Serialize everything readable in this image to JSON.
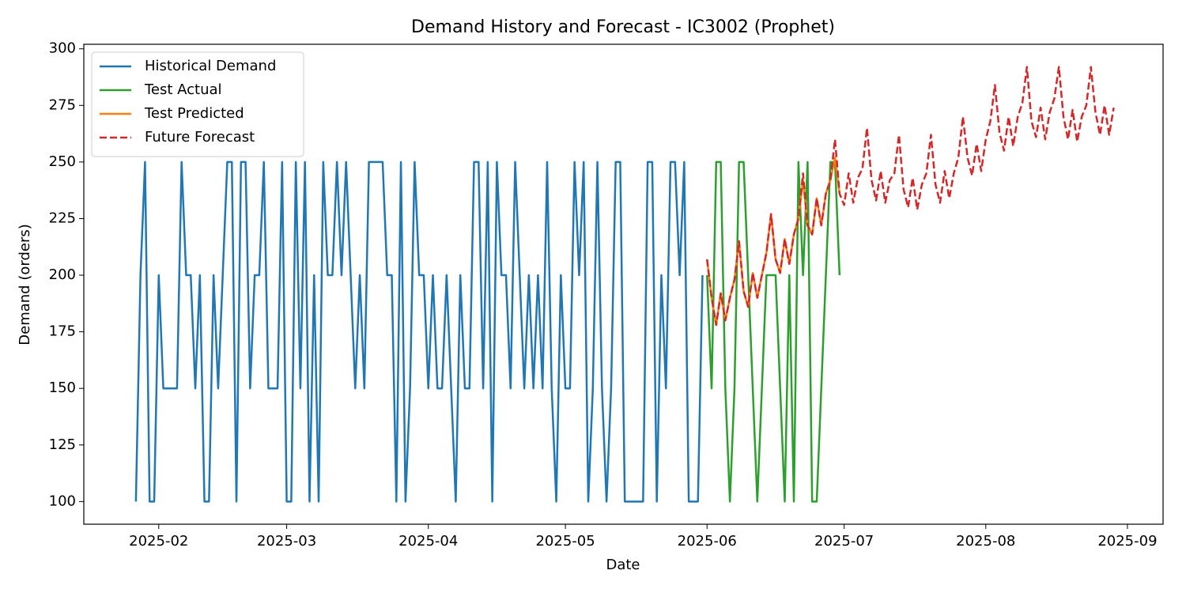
{
  "chart_data": {
    "type": "line",
    "title": "Demand History and Forecast - IC3002 (Prophet)",
    "x_label": "Date",
    "y_label": "Demand (orders)",
    "xlim": [
      15.6,
      251.8
    ],
    "ylim": [
      90,
      302
    ],
    "xticks": [
      {
        "value": 32,
        "label": "2025-02"
      },
      {
        "value": 60,
        "label": "2025-03"
      },
      {
        "value": 91,
        "label": "2025-04"
      },
      {
        "value": 121,
        "label": "2025-05"
      },
      {
        "value": 152,
        "label": "2025-06"
      },
      {
        "value": 182,
        "label": "2025-07"
      },
      {
        "value": 213,
        "label": "2025-08"
      },
      {
        "value": 244,
        "label": "2025-09"
      }
    ],
    "yticks": [
      100,
      125,
      150,
      175,
      200,
      225,
      250,
      275,
      300
    ],
    "legend": "upper left",
    "series": [
      {
        "name": "Historical Demand",
        "color": "#1f77b4",
        "linestyle": "solid",
        "x": [
          27,
          28,
          29,
          30,
          31,
          32,
          33,
          34,
          35,
          36,
          37,
          38,
          39,
          40,
          41,
          42,
          43,
          44,
          45,
          46,
          47,
          48,
          49,
          50,
          51,
          52,
          53,
          54,
          55,
          56,
          57,
          58,
          59,
          60,
          61,
          62,
          63,
          64,
          65,
          66,
          67,
          68,
          69,
          70,
          71,
          72,
          73,
          74,
          75,
          76,
          77,
          78,
          79,
          80,
          81,
          82,
          83,
          84,
          85,
          86,
          87,
          88,
          89,
          90,
          91,
          92,
          93,
          94,
          95,
          96,
          97,
          98,
          99,
          100,
          101,
          102,
          103,
          104,
          105,
          106,
          107,
          108,
          109,
          110,
          111,
          112,
          113,
          114,
          115,
          116,
          117,
          118,
          119,
          120,
          121,
          122,
          123,
          124,
          125,
          126,
          127,
          128,
          129,
          130,
          131,
          132,
          133,
          134,
          135,
          136,
          137,
          138,
          139,
          140,
          141,
          142,
          143,
          144,
          145,
          146,
          147,
          148,
          149,
          150,
          151
        ],
        "values": [
          100,
          200,
          250,
          100,
          100,
          200,
          150,
          150,
          150,
          150,
          250,
          200,
          200,
          150,
          200,
          100,
          100,
          200,
          150,
          200,
          250,
          250,
          100,
          250,
          250,
          150,
          200,
          200,
          250,
          150,
          150,
          150,
          250,
          100,
          100,
          250,
          150,
          250,
          100,
          200,
          100,
          250,
          200,
          200,
          250,
          200,
          250,
          200,
          150,
          200,
          150,
          250,
          250,
          250,
          250,
          200,
          200,
          100,
          250,
          100,
          150,
          250,
          200,
          200,
          150,
          200,
          150,
          150,
          200,
          150,
          100,
          200,
          150,
          150,
          250,
          250,
          150,
          250,
          100,
          250,
          200,
          200,
          150,
          250,
          200,
          150,
          200,
          150,
          200,
          150,
          250,
          150,
          100,
          200,
          150,
          150,
          250,
          200,
          250,
          100,
          150,
          250,
          150,
          100,
          150,
          250,
          250,
          100,
          100,
          100,
          100,
          100,
          250,
          250,
          100,
          200,
          150,
          250,
          250,
          200,
          250,
          100,
          100,
          100,
          200
        ]
      },
      {
        "name": "Test Actual",
        "color": "#2ca02c",
        "linestyle": "solid",
        "x": [
          152,
          153,
          154,
          155,
          156,
          157,
          158,
          159,
          160,
          161,
          162,
          163,
          164,
          165,
          166,
          167,
          168,
          169,
          170,
          171,
          172,
          173,
          174,
          175,
          176,
          177,
          178,
          179,
          180,
          181
        ],
        "values": [
          200,
          150,
          250,
          250,
          150,
          100,
          150,
          250,
          250,
          200,
          150,
          100,
          150,
          200,
          200,
          200,
          150,
          100,
          200,
          100,
          250,
          200,
          250,
          100,
          100,
          150,
          200,
          250,
          250,
          200
        ]
      },
      {
        "name": "Test Predicted",
        "color": "#ff7f0e",
        "linestyle": "solid",
        "x": [
          152,
          153,
          154,
          155,
          156,
          157,
          158,
          159,
          160,
          161,
          162,
          163,
          164,
          165,
          166,
          167,
          168,
          169,
          170,
          171,
          172,
          173,
          174,
          175,
          176,
          177,
          178,
          179,
          180,
          181
        ],
        "values": [
          207,
          190,
          178,
          192,
          180,
          190,
          198,
          215,
          193,
          186,
          201,
          190,
          200,
          210,
          227,
          207,
          201,
          216,
          205,
          218,
          225,
          242,
          222,
          218,
          234,
          222,
          236,
          242,
          252,
          236
        ]
      },
      {
        "name": "Future Forecast",
        "color": "#d62728",
        "linestyle": "dashed",
        "x": [
          152,
          153,
          154,
          155,
          156,
          157,
          158,
          159,
          160,
          161,
          162,
          163,
          164,
          165,
          166,
          167,
          168,
          169,
          170,
          171,
          172,
          173,
          174,
          175,
          176,
          177,
          178,
          179,
          180,
          181,
          182,
          183,
          184,
          185,
          186,
          187,
          188,
          189,
          190,
          191,
          192,
          193,
          194,
          195,
          196,
          197,
          198,
          199,
          200,
          201,
          202,
          203,
          204,
          205,
          206,
          207,
          208,
          209,
          210,
          211,
          212,
          213,
          214,
          215,
          216,
          217,
          218,
          219,
          220,
          221,
          222,
          223,
          224,
          225,
          226,
          227,
          228,
          229,
          230,
          231,
          232,
          233,
          234,
          235,
          236,
          237,
          238,
          239,
          240,
          241
        ],
        "values": [
          207,
          190,
          178,
          192,
          180,
          190,
          198,
          215,
          193,
          186,
          201,
          190,
          200,
          210,
          227,
          207,
          201,
          216,
          205,
          218,
          225,
          245,
          222,
          218,
          234,
          222,
          236,
          242,
          260,
          236,
          231,
          245,
          232,
          243,
          247,
          265,
          242,
          233,
          246,
          232,
          242,
          245,
          262,
          238,
          230,
          243,
          229,
          240,
          245,
          262,
          240,
          232,
          246,
          234,
          245,
          252,
          270,
          252,
          244,
          258,
          246,
          260,
          268,
          284,
          263,
          255,
          270,
          257,
          270,
          276,
          292,
          268,
          261,
          274,
          260,
          272,
          278,
          292,
          270,
          260,
          273,
          259,
          270,
          275,
          292,
          272,
          262,
          275,
          262,
          274
        ]
      }
    ]
  }
}
